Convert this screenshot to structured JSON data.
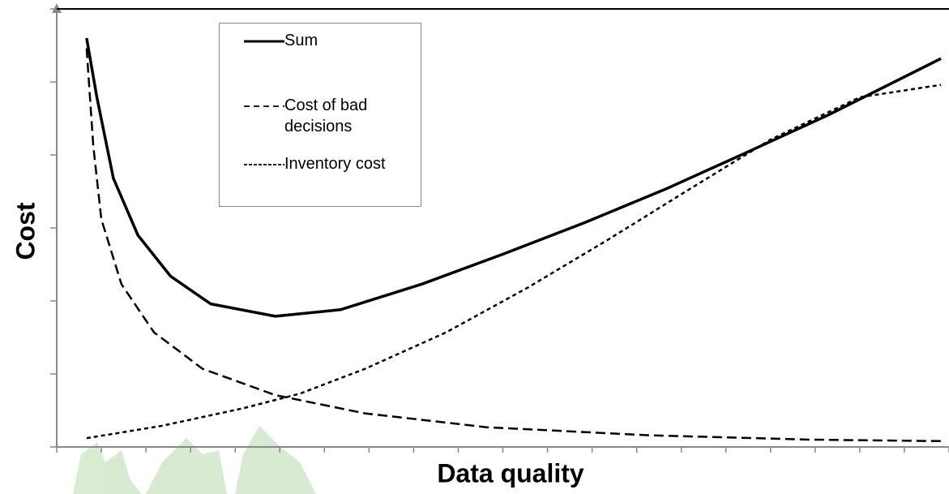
{
  "chart_data": {
    "type": "line",
    "xlabel": "Data quality",
    "ylabel": "Cost",
    "xlim": [
      0,
      20
    ],
    "ylim": [
      0,
      6
    ],
    "xticks": [
      0,
      1,
      2,
      3,
      4,
      5,
      6,
      7,
      8,
      9,
      10,
      11,
      12,
      13,
      14,
      15,
      16,
      17,
      18,
      19,
      20
    ],
    "yticks": [
      0,
      1,
      2,
      3,
      4,
      5,
      6
    ],
    "legend": "upper left",
    "series": [
      {
        "name": "Sum",
        "color": "#000000",
        "dash": "solid",
        "x": [
          0.67,
          0.9,
          1.27,
          1.82,
          2.55,
          3.45,
          4.9,
          6.36,
          8.18,
          10,
          11.82,
          13.64,
          15.45,
          17.27,
          19.82
        ],
        "values": [
          5.6,
          4.79,
          3.68,
          2.9,
          2.34,
          1.96,
          1.79,
          1.88,
          2.23,
          2.64,
          3.07,
          3.53,
          4.03,
          4.54,
          5.32
        ]
      },
      {
        "name": "Cost of bad decisions",
        "color": "#000000",
        "dash": "dashed",
        "x": [
          0.67,
          0.82,
          1,
          1.45,
          2.18,
          3.27,
          4.9,
          6.91,
          9.64,
          13.27,
          16.9,
          19.82
        ],
        "values": [
          5.46,
          4.12,
          3.12,
          2.23,
          1.57,
          1.07,
          0.71,
          0.46,
          0.27,
          0.16,
          0.1,
          0.08
        ]
      },
      {
        "name": "Inventory cost",
        "color": "#000000",
        "dash": "dotted",
        "x": [
          0.67,
          2.36,
          4.18,
          5.45,
          6.91,
          8.73,
          10.55,
          12.36,
          14.18,
          16,
          18,
          19.82
        ],
        "values": [
          0.12,
          0.29,
          0.53,
          0.73,
          1.07,
          1.57,
          2.18,
          2.84,
          3.53,
          4.21,
          4.79,
          4.96
        ]
      }
    ]
  }
}
